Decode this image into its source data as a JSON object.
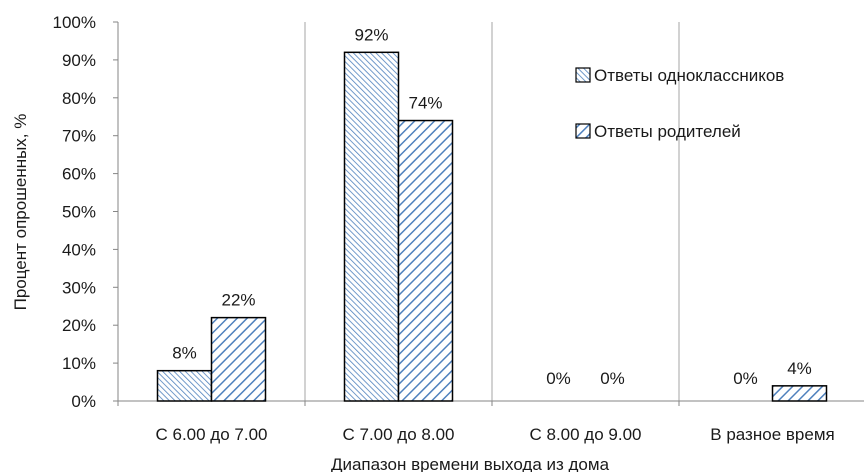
{
  "chart_data": {
    "type": "bar",
    "categories": [
      "С 6.00 до 7.00",
      "С 7.00 до 8.00",
      "С 8.00 до 9.00",
      "В разное время"
    ],
    "series": [
      {
        "name": "Ответы одноклассников",
        "values": [
          8,
          92,
          0,
          0
        ],
        "labels": [
          "8%",
          "92%",
          "0%",
          "0%"
        ],
        "pattern": "backslash",
        "color": "#4f81bd"
      },
      {
        "name": "Ответы родителей",
        "values": [
          22,
          74,
          0,
          4
        ],
        "labels": [
          "22%",
          "74%",
          "0%",
          "4%"
        ],
        "pattern": "slash",
        "color": "#4f81bd"
      }
    ],
    "xlabel": "Диапазон времени выхода из дома",
    "ylabel": "Процент опрошенных, %",
    "ylim": [
      0,
      100
    ],
    "yticks": [
      "0%",
      "10%",
      "20%",
      "30%",
      "40%",
      "50%",
      "60%",
      "70%",
      "80%",
      "90%",
      "100%"
    ],
    "grid": "vertical separators between categories",
    "legend_position": "top-right"
  }
}
